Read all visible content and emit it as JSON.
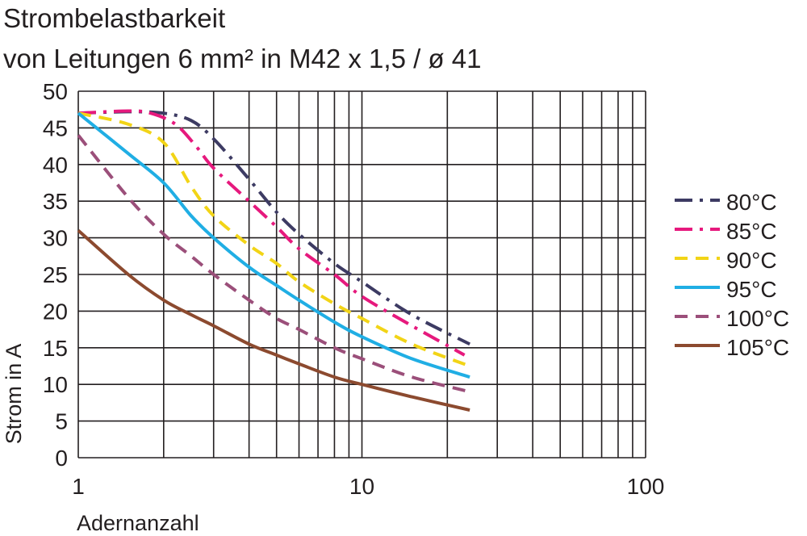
{
  "chart_data": {
    "type": "line",
    "title_lines": [
      "Strombelastbarkeit",
      "von Leitungen 6 mm² in M42 x 1,5 / ø 41"
    ],
    "xlabel": "Adernanzahl",
    "ylabel": "Strom in A",
    "x_scale": "log",
    "xlim": [
      1,
      100
    ],
    "ylim": [
      0,
      50
    ],
    "x_ticks": [
      1,
      10,
      100
    ],
    "y_ticks": [
      0,
      5,
      10,
      15,
      20,
      25,
      30,
      35,
      40,
      45,
      50
    ],
    "grid": true,
    "legend_position": "right",
    "series": [
      {
        "name": "80°C",
        "color": "#3d3b63",
        "dash": "dash-dot",
        "x": [
          1,
          1.5,
          2,
          2.5,
          3,
          4,
          5,
          6,
          8,
          10,
          15,
          24
        ],
        "y": [
          47,
          47.2,
          47,
          46,
          43.5,
          38,
          33.5,
          30.5,
          26.5,
          24,
          19.5,
          15.5
        ]
      },
      {
        "name": "85°C",
        "color": "#e6197d",
        "dash": "dash-dot",
        "x": [
          1,
          1.5,
          1.8,
          2.2,
          2.6,
          3,
          4,
          5,
          6,
          8,
          10,
          15,
          23
        ],
        "y": [
          47,
          47.3,
          47,
          45.5,
          42.5,
          39.5,
          35,
          31.5,
          28.5,
          25,
          22,
          18,
          14
        ]
      },
      {
        "name": "90°C",
        "color": "#f2d416",
        "dash": "dash",
        "x": [
          1,
          1.5,
          2,
          2.5,
          3,
          4,
          5,
          6,
          8,
          10,
          15,
          24
        ],
        "y": [
          47,
          45.5,
          43,
          37,
          33,
          29,
          26.5,
          24,
          21,
          19,
          15.5,
          12.5
        ]
      },
      {
        "name": "95°C",
        "color": "#20aee4",
        "dash": "solid",
        "x": [
          1,
          1.5,
          2,
          2.5,
          3,
          4,
          5,
          6,
          8,
          10,
          15,
          24
        ],
        "y": [
          47,
          41.5,
          37.5,
          33,
          30,
          26,
          23.5,
          21.5,
          18.5,
          16.5,
          13.5,
          11
        ]
      },
      {
        "name": "100°C",
        "color": "#9b4f7a",
        "dash": "dash",
        "x": [
          1,
          1.5,
          2,
          2.5,
          3,
          4,
          5,
          6,
          8,
          10,
          15,
          24
        ],
        "y": [
          44,
          35.5,
          30.5,
          27.5,
          25,
          21.5,
          19,
          17.5,
          15,
          13.5,
          11,
          9
        ]
      },
      {
        "name": "105°C",
        "color": "#8c4a2f",
        "dash": "solid",
        "x": [
          1,
          1.5,
          2,
          2.5,
          3,
          4,
          5,
          6,
          8,
          10,
          15,
          24
        ],
        "y": [
          31,
          25,
          21.5,
          19.5,
          18,
          15.5,
          14,
          12.8,
          11,
          10,
          8.3,
          6.5
        ]
      }
    ]
  }
}
